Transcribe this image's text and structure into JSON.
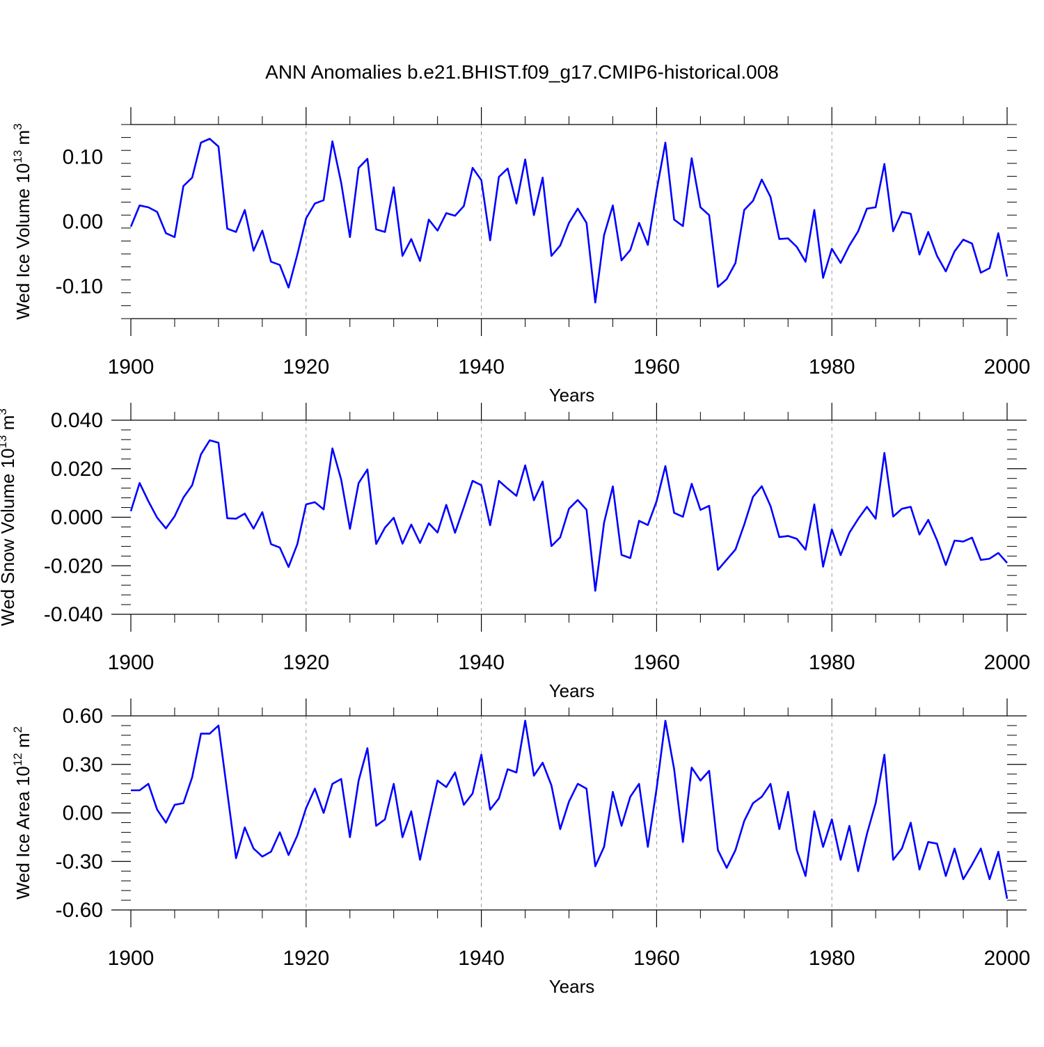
{
  "title": "ANN Anomalies b.e21.BHIST.f09_g17.CMIP6-historical.008",
  "line_color": "#0000ff",
  "chart_data": [
    {
      "type": "line",
      "ylabel_main": "Wed Ice Volume 10",
      "ylabel_exp": "13",
      "ylabel_unit": " m",
      "ylabel_unit_exp": "3",
      "xlabel": "Years",
      "xlim": [
        1900,
        2000
      ],
      "ylim": [
        -0.15,
        0.15
      ],
      "yticks": [
        "0.10",
        "0.00",
        "-0.10"
      ],
      "ytick_values": [
        0.1,
        0.0,
        -0.1
      ],
      "xticks": [
        "1900",
        "1920",
        "1940",
        "1960",
        "1980",
        "2000"
      ],
      "x": [
        1900,
        1901,
        1902,
        1903,
        1904,
        1905,
        1906,
        1907,
        1908,
        1909,
        1910,
        1911,
        1912,
        1913,
        1914,
        1915,
        1916,
        1917,
        1918,
        1919,
        1920,
        1921,
        1922,
        1923,
        1924,
        1925,
        1926,
        1927,
        1928,
        1929,
        1930,
        1931,
        1932,
        1933,
        1934,
        1935,
        1936,
        1937,
        1938,
        1939,
        1940,
        1941,
        1942,
        1943,
        1944,
        1945,
        1946,
        1947,
        1948,
        1949,
        1950,
        1951,
        1952,
        1953,
        1954,
        1955,
        1956,
        1957,
        1958,
        1959,
        1960,
        1961,
        1962,
        1963,
        1964,
        1965,
        1966,
        1967,
        1968,
        1969,
        1970,
        1971,
        1972,
        1973,
        1974,
        1975,
        1976,
        1977,
        1978,
        1979,
        1980,
        1981,
        1982,
        1983,
        1984,
        1985,
        1986,
        1987,
        1988,
        1989,
        1990,
        1991,
        1992,
        1993,
        1994,
        1995,
        1996,
        1997,
        1998,
        1999,
        2000
      ],
      "values": [
        -0.008,
        0.025,
        0.022,
        0.015,
        -0.018,
        -0.024,
        0.055,
        0.068,
        0.122,
        0.128,
        0.116,
        -0.011,
        -0.016,
        0.018,
        -0.045,
        -0.014,
        -0.062,
        -0.067,
        -0.102,
        -0.051,
        0.005,
        0.028,
        0.033,
        0.124,
        0.06,
        -0.024,
        0.083,
        0.097,
        -0.012,
        -0.016,
        0.053,
        -0.053,
        -0.027,
        -0.061,
        0.003,
        -0.014,
        0.013,
        0.009,
        0.024,
        0.083,
        0.064,
        -0.029,
        0.069,
        0.082,
        0.028,
        0.096,
        0.01,
        0.068,
        -0.053,
        -0.037,
        -0.002,
        0.02,
        -0.002,
        -0.125,
        -0.021,
        0.025,
        -0.06,
        -0.044,
        -0.002,
        -0.036,
        0.048,
        0.122,
        0.003,
        -0.007,
        0.098,
        0.022,
        0.01,
        -0.101,
        -0.089,
        -0.064,
        0.018,
        0.032,
        0.065,
        0.038,
        -0.027,
        -0.026,
        -0.039,
        -0.062,
        0.018,
        -0.087,
        -0.042,
        -0.064,
        -0.037,
        -0.015,
        0.02,
        0.022,
        0.089,
        -0.015,
        0.015,
        0.012,
        -0.051,
        -0.016,
        -0.053,
        -0.077,
        -0.046,
        -0.028,
        -0.034,
        -0.079,
        -0.072,
        -0.018,
        -0.085
      ]
    },
    {
      "type": "line",
      "ylabel_main": "Wed Snow Volume 10",
      "ylabel_exp": "13",
      "ylabel_unit": " m",
      "ylabel_unit_exp": "3",
      "xlabel": "Years",
      "xlim": [
        1900,
        2000
      ],
      "ylim": [
        -0.04,
        0.04
      ],
      "yticks": [
        "0.040",
        "0.020",
        "0.000",
        "-0.020",
        "-0.040"
      ],
      "ytick_values": [
        0.04,
        0.02,
        0.0,
        -0.02,
        -0.04
      ],
      "xticks": [
        "1900",
        "1920",
        "1940",
        "1960",
        "1980",
        "2000"
      ],
      "x": [
        1900,
        1901,
        1902,
        1903,
        1904,
        1905,
        1906,
        1907,
        1908,
        1909,
        1910,
        1911,
        1912,
        1913,
        1914,
        1915,
        1916,
        1917,
        1918,
        1919,
        1920,
        1921,
        1922,
        1923,
        1924,
        1925,
        1926,
        1927,
        1928,
        1929,
        1930,
        1931,
        1932,
        1933,
        1934,
        1935,
        1936,
        1937,
        1938,
        1939,
        1940,
        1941,
        1942,
        1943,
        1944,
        1945,
        1946,
        1947,
        1948,
        1949,
        1950,
        1951,
        1952,
        1953,
        1954,
        1955,
        1956,
        1957,
        1958,
        1959,
        1960,
        1961,
        1962,
        1963,
        1964,
        1965,
        1966,
        1967,
        1968,
        1969,
        1970,
        1971,
        1972,
        1973,
        1974,
        1975,
        1976,
        1977,
        1978,
        1979,
        1980,
        1981,
        1982,
        1983,
        1984,
        1985,
        1986,
        1987,
        1988,
        1989,
        1990,
        1991,
        1992,
        1993,
        1994,
        1995,
        1996,
        1997,
        1998,
        1999,
        2000
      ],
      "values": [
        0.0025,
        0.0141,
        0.0066,
        -0.0002,
        -0.0046,
        0.0004,
        0.0081,
        0.0132,
        0.0259,
        0.0317,
        0.0307,
        -0.0004,
        -0.0006,
        0.0015,
        -0.0047,
        0.0021,
        -0.0111,
        -0.0125,
        -0.0205,
        -0.0111,
        0.0053,
        0.0062,
        0.0032,
        0.0284,
        0.0155,
        -0.0048,
        0.0141,
        0.0197,
        -0.011,
        -0.0043,
        -0.0002,
        -0.0109,
        -0.003,
        -0.0106,
        -0.0025,
        -0.0063,
        0.0051,
        -0.0064,
        0.0041,
        0.015,
        0.0132,
        -0.0033,
        0.015,
        0.0118,
        0.0088,
        0.0214,
        0.007,
        0.0147,
        -0.0119,
        -0.0083,
        0.0035,
        0.0071,
        0.0031,
        -0.0303,
        -0.0023,
        0.0127,
        -0.0155,
        -0.0168,
        -0.0015,
        -0.0032,
        0.0066,
        0.0211,
        0.0018,
        0.0002,
        0.0138,
        0.003,
        0.0047,
        -0.0217,
        -0.0175,
        -0.0133,
        -0.003,
        0.0084,
        0.0128,
        0.0046,
        -0.0082,
        -0.0077,
        -0.0089,
        -0.0134,
        0.0053,
        -0.0204,
        -0.005,
        -0.0156,
        -0.0064,
        -0.0007,
        0.0043,
        -0.0006,
        0.0265,
        0.0003,
        0.0035,
        0.0043,
        -0.0071,
        -0.0011,
        -0.0095,
        -0.0197,
        -0.0096,
        -0.01,
        -0.0084,
        -0.0176,
        -0.0171,
        -0.0147,
        -0.0188
      ]
    },
    {
      "type": "line",
      "ylabel_main": "Wed Ice Area 10",
      "ylabel_exp": "12",
      "ylabel_unit": " m",
      "ylabel_unit_exp": "2",
      "xlabel": "Years",
      "xlim": [
        1900,
        2000
      ],
      "ylim": [
        -0.6,
        0.6
      ],
      "yticks": [
        "0.60",
        "0.30",
        "0.00",
        "-0.30",
        "-0.60"
      ],
      "ytick_values": [
        0.6,
        0.3,
        0.0,
        -0.3,
        -0.6
      ],
      "xticks": [
        "1900",
        "1920",
        "1940",
        "1960",
        "1980",
        "2000"
      ],
      "x": [
        1900,
        1901,
        1902,
        1903,
        1904,
        1905,
        1906,
        1907,
        1908,
        1909,
        1910,
        1911,
        1912,
        1913,
        1914,
        1915,
        1916,
        1917,
        1918,
        1919,
        1920,
        1921,
        1922,
        1923,
        1924,
        1925,
        1926,
        1927,
        1928,
        1929,
        1930,
        1931,
        1932,
        1933,
        1934,
        1935,
        1936,
        1937,
        1938,
        1939,
        1940,
        1941,
        1942,
        1943,
        1944,
        1945,
        1946,
        1947,
        1948,
        1949,
        1950,
        1951,
        1952,
        1953,
        1954,
        1955,
        1956,
        1957,
        1958,
        1959,
        1960,
        1961,
        1962,
        1963,
        1964,
        1965,
        1966,
        1967,
        1968,
        1969,
        1970,
        1971,
        1972,
        1973,
        1974,
        1975,
        1976,
        1977,
        1978,
        1979,
        1980,
        1981,
        1982,
        1983,
        1984,
        1985,
        1986,
        1987,
        1988,
        1989,
        1990,
        1991,
        1992,
        1993,
        1994,
        1995,
        1996,
        1997,
        1998,
        1999,
        2000
      ],
      "values": [
        0.14,
        0.14,
        0.18,
        0.02,
        -0.06,
        0.05,
        0.06,
        0.22,
        0.49,
        0.49,
        0.54,
        0.13,
        -0.28,
        -0.09,
        -0.22,
        -0.27,
        -0.24,
        -0.12,
        -0.26,
        -0.14,
        0.03,
        0.15,
        0.0,
        0.18,
        0.21,
        -0.15,
        0.2,
        0.4,
        -0.08,
        -0.04,
        0.18,
        -0.15,
        0.01,
        -0.29,
        -0.04,
        0.2,
        0.16,
        0.25,
        0.05,
        0.12,
        0.36,
        0.02,
        0.09,
        0.27,
        0.25,
        0.57,
        0.23,
        0.31,
        0.17,
        -0.1,
        0.07,
        0.18,
        0.15,
        -0.33,
        -0.21,
        0.13,
        -0.08,
        0.1,
        0.18,
        -0.21,
        0.15,
        0.57,
        0.27,
        -0.18,
        0.28,
        0.2,
        0.26,
        -0.23,
        -0.34,
        -0.23,
        -0.05,
        0.06,
        0.1,
        0.18,
        -0.1,
        0.13,
        -0.23,
        -0.39,
        0.01,
        -0.21,
        -0.04,
        -0.29,
        -0.08,
        -0.36,
        -0.13,
        0.06,
        0.36,
        -0.29,
        -0.22,
        -0.06,
        -0.35,
        -0.18,
        -0.19,
        -0.39,
        -0.22,
        -0.41,
        -0.32,
        -0.22,
        -0.41,
        -0.24,
        -0.53
      ]
    }
  ]
}
